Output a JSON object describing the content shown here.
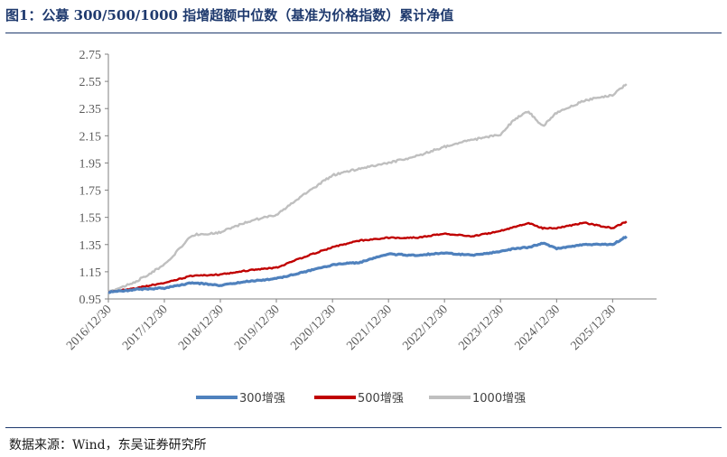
{
  "title": "图1：公募 300/500/1000 指增超额中位数（基准为价格指数）累计净值",
  "source": "数据来源：Wind，东吴证券研究所",
  "chart_data": {
    "type": "line",
    "title": "图1：公募 300/500/1000 指增超额中位数（基准为价格指数）累计净值",
    "xlabel": "",
    "ylabel": "",
    "ylim": [
      0.95,
      2.75
    ],
    "yticks": [
      "0.95",
      "1.15",
      "1.35",
      "1.55",
      "1.75",
      "1.95",
      "2.15",
      "2.35",
      "2.55",
      "2.75"
    ],
    "xticks": [
      "2016/12/30",
      "2017/12/30",
      "2018/12/30",
      "2019/12/30",
      "2020/12/30",
      "2021/12/30",
      "2022/12/30",
      "2023/12/30",
      "2024/12/30",
      "2025/12/30"
    ],
    "grid": false,
    "legend": "bottom",
    "series": [
      {
        "name": "300增强",
        "color": "#4f81bd",
        "x": [
          "2016/12/30",
          "2017/06/30",
          "2017/12/30",
          "2018/06/30",
          "2018/12/30",
          "2019/06/30",
          "2019/12/30",
          "2020/06/30",
          "2020/12/30",
          "2021/06/30",
          "2021/12/30",
          "2022/06/30",
          "2022/12/30",
          "2023/06/30",
          "2023/12/30",
          "2024/03/31",
          "2024/06/30",
          "2024/09/30",
          "2024/12/30",
          "2025/06/30",
          "2025/12/30",
          "2026/03/31"
        ],
        "values": [
          1.0,
          1.02,
          1.03,
          1.07,
          1.05,
          1.08,
          1.1,
          1.15,
          1.2,
          1.22,
          1.28,
          1.27,
          1.29,
          1.27,
          1.3,
          1.32,
          1.33,
          1.36,
          1.32,
          1.35,
          1.35,
          1.41
        ]
      },
      {
        "name": "500增强",
        "color": "#c00000",
        "x": [
          "2016/12/30",
          "2017/06/30",
          "2017/12/30",
          "2018/06/30",
          "2018/12/30",
          "2019/06/30",
          "2019/12/30",
          "2020/06/30",
          "2020/12/30",
          "2021/06/30",
          "2021/12/30",
          "2022/06/30",
          "2022/12/30",
          "2023/06/30",
          "2023/12/30",
          "2024/03/31",
          "2024/06/30",
          "2024/09/30",
          "2024/12/30",
          "2025/06/30",
          "2025/12/30",
          "2026/03/31"
        ],
        "values": [
          1.0,
          1.03,
          1.07,
          1.12,
          1.13,
          1.16,
          1.18,
          1.26,
          1.33,
          1.38,
          1.4,
          1.4,
          1.43,
          1.41,
          1.45,
          1.48,
          1.51,
          1.47,
          1.47,
          1.51,
          1.47,
          1.52
        ]
      },
      {
        "name": "1000增强",
        "color": "#bfbfbf",
        "x": [
          "2016/12/30",
          "2017/06/30",
          "2017/12/30",
          "2018/06/30",
          "2018/12/30",
          "2019/06/30",
          "2019/12/30",
          "2020/06/30",
          "2020/12/30",
          "2021/06/30",
          "2021/12/30",
          "2022/06/30",
          "2022/12/30",
          "2023/06/30",
          "2023/12/30",
          "2024/03/31",
          "2024/06/30",
          "2024/09/30",
          "2024/12/30",
          "2025/06/30",
          "2025/12/30",
          "2026/03/31"
        ],
        "values": [
          1.0,
          1.08,
          1.2,
          1.42,
          1.44,
          1.52,
          1.57,
          1.72,
          1.86,
          1.91,
          1.95,
          2.0,
          2.07,
          2.12,
          2.16,
          2.27,
          2.33,
          2.22,
          2.32,
          2.41,
          2.45,
          2.53
        ]
      }
    ]
  }
}
